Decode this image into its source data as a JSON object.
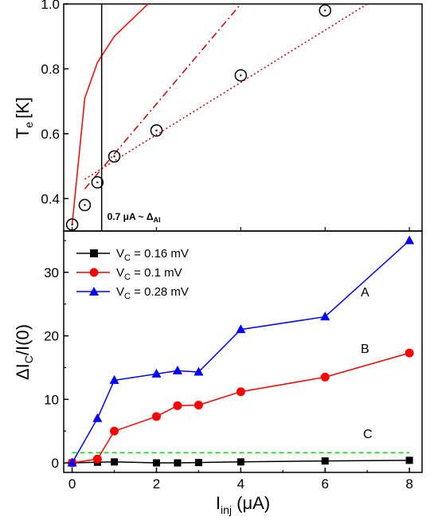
{
  "chart_data": [
    {
      "type": "line",
      "panel": "top",
      "ylabel": "T",
      "ylabel_sub": "e",
      "ylabel_unit": "[K]",
      "xlim": [
        -0.2,
        8.3
      ],
      "ylim": [
        0.3,
        1.0
      ],
      "yticks": [
        "0.4",
        "0.6",
        "0.8",
        "1.0"
      ],
      "ytick_values": [
        0.4,
        0.6,
        0.8,
        1.0
      ],
      "annotation": {
        "prefix": "0.7 ",
        "mu": "μ",
        "mid": "A ~ Δ",
        "sub": "Al",
        "x": 0.7
      },
      "measured_points": {
        "x": [
          0,
          0.3,
          0.6,
          1.0,
          2.0,
          4.0,
          6.0
        ],
        "y": [
          0.32,
          0.38,
          0.45,
          0.53,
          0.61,
          0.78,
          0.98
        ]
      },
      "series": [
        {
          "style": "solid",
          "color": "#ff0000",
          "x": [
            0,
            0.3,
            0.6,
            1.0,
            1.8
          ],
          "y": [
            0.32,
            0.71,
            0.82,
            0.9,
            1.0
          ]
        },
        {
          "style": "dashdot",
          "color": "#cc0000",
          "x": [
            0.3,
            4.0
          ],
          "y": [
            0.43,
            1.0
          ]
        },
        {
          "style": "dotted",
          "color": "#cc0000",
          "x": [
            0.3,
            7.0
          ],
          "y": [
            0.46,
            1.0
          ]
        }
      ]
    },
    {
      "type": "line",
      "panel": "bottom",
      "ylabel": "ΔI",
      "ylabel_sub": "C",
      "ylabel_rest": "/I(0)",
      "xlabel": "I",
      "xlabel_sub": "inj",
      "xlabel_unit_open": " (",
      "xlabel_mu": "μ",
      "xlabel_unit_close": "A)",
      "xlim": [
        -0.2,
        8.3
      ],
      "ylim": [
        -1.5,
        36.5
      ],
      "xticks": [
        "0",
        "2",
        "4",
        "6",
        "8"
      ],
      "xtick_values": [
        0,
        2,
        4,
        6,
        8
      ],
      "yticks": [
        "0",
        "10",
        "20",
        "30"
      ],
      "ytick_values": [
        0,
        10,
        20,
        30
      ],
      "legend_position": "top-left",
      "series": [
        {
          "legend_prefix": "V",
          "legend_sub": "C",
          "legend_value": " = 0.16 mV",
          "color": "#000000",
          "marker": "square",
          "label": "",
          "x": [
            0,
            0.6,
            1.0,
            2.0,
            2.5,
            3.0,
            4.0,
            6.0,
            8.0
          ],
          "y": [
            0,
            0.1,
            0.15,
            0.0,
            0.0,
            0.05,
            0.15,
            0.3,
            0.4
          ]
        },
        {
          "legend_prefix": "V",
          "legend_sub": "C",
          "legend_value": " = 0.1 mV",
          "color": "#ff0000",
          "marker": "circle",
          "label": "B",
          "x": [
            0,
            0.6,
            1.0,
            2.0,
            2.5,
            3.0,
            4.0,
            6.0,
            8.0
          ],
          "y": [
            0,
            0.6,
            5.0,
            7.3,
            9.0,
            9.1,
            11.2,
            13.5,
            17.3
          ]
        },
        {
          "legend_prefix": "V",
          "legend_sub": "C",
          "legend_value": " = 0.28 mV",
          "color": "#0000ff",
          "marker": "triangle",
          "label": "A",
          "x": [
            0,
            0.6,
            1.0,
            2.0,
            2.5,
            3.0,
            4.0,
            6.0,
            8.0
          ],
          "y": [
            0,
            7.0,
            13.0,
            14.0,
            14.5,
            14.3,
            21.0,
            23.0,
            35.0
          ]
        }
      ],
      "reference_line": {
        "label": "C",
        "color": "#00dd00",
        "style": "dashed",
        "x": [
          0,
          8.0
        ],
        "y": [
          1.6,
          1.6
        ]
      }
    }
  ]
}
